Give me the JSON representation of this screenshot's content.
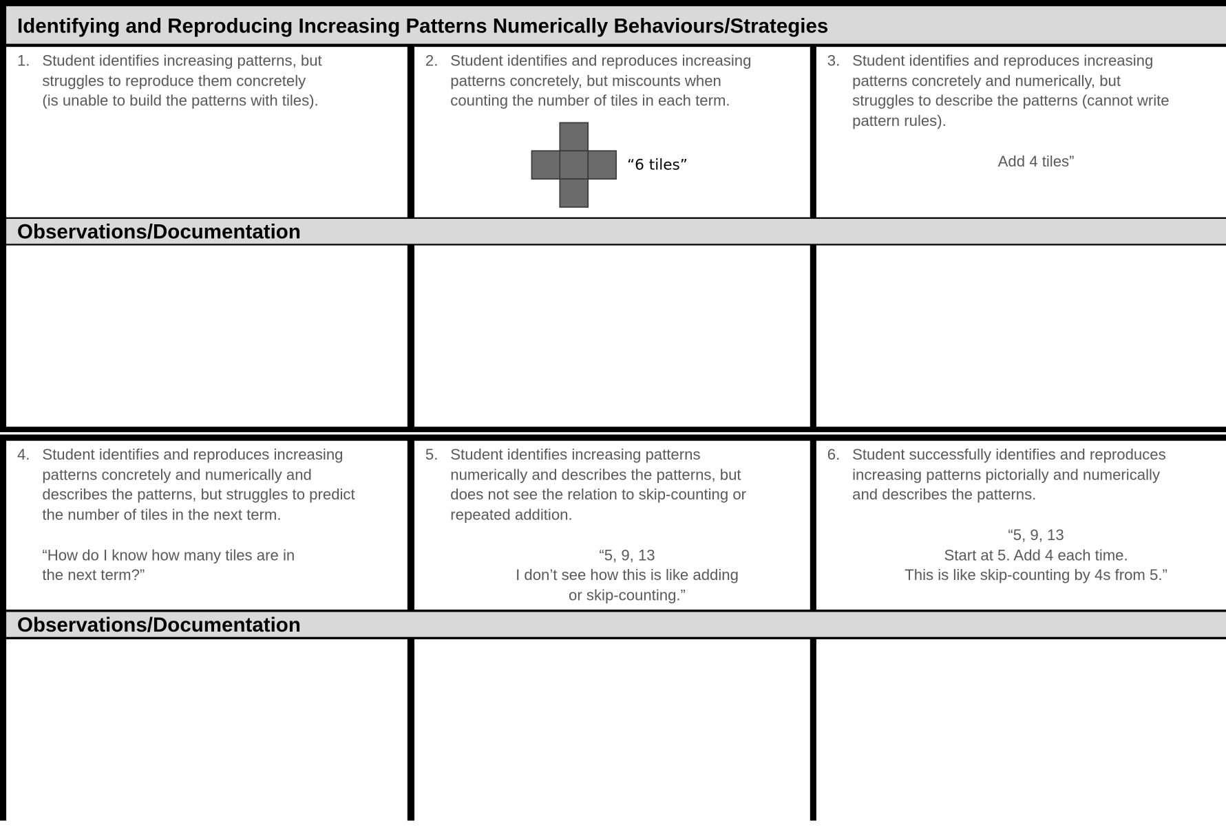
{
  "title": "Identifying and Reproducing Increasing Patterns Numerically Behaviours/Strategies",
  "rows": [
    {
      "cells": [
        {
          "number": "1.",
          "lines": [
            "Student identifies increasing patterns, but",
            "struggles to reproduce them concretely",
            "(is unable to build the patterns with tiles)."
          ],
          "quote": []
        },
        {
          "number": "2.",
          "lines": [
            "Student identifies and reproduces increasing",
            "patterns concretely, but miscounts when",
            "counting the number of tiles in each term."
          ],
          "quote": [],
          "figure_label": "“6 tiles”"
        },
        {
          "number": "3.",
          "lines": [
            "Student identifies and reproduces increasing",
            "patterns concretely and numerically, but",
            "struggles to describe the patterns (cannot write",
            "pattern rules)."
          ],
          "quote": [
            "Add 4 tiles”"
          ]
        }
      ],
      "observations": "Observations/Documentation"
    },
    {
      "cells": [
        {
          "number": "4.",
          "lines": [
            "Student identifies and reproduces increasing",
            "patterns concretely and numerically and",
            "describes the patterns, but struggles to predict",
            "the number of tiles in the next term."
          ],
          "quote": [
            "“How do I know how many tiles are in",
            "the next term?”"
          ]
        },
        {
          "number": "5.",
          "lines": [
            "Student identifies increasing patterns",
            "numerically and describes the patterns, but",
            "does not see the relation to skip-counting or",
            "repeated addition."
          ],
          "quote": [
            "“5, 9, 13",
            "I don’t see how this is like adding",
            "or skip-counting.”"
          ]
        },
        {
          "number": "6.",
          "lines": [
            "Student successfully identifies and reproduces",
            "increasing patterns pictorially and numerically",
            "and describes the patterns."
          ],
          "quote": [
            "“5, 9, 13",
            "Start at 5. Add 4 each time.",
            "This is like skip-counting by 4s from 5.”"
          ]
        }
      ],
      "observations": "Observations/Documentation"
    }
  ]
}
